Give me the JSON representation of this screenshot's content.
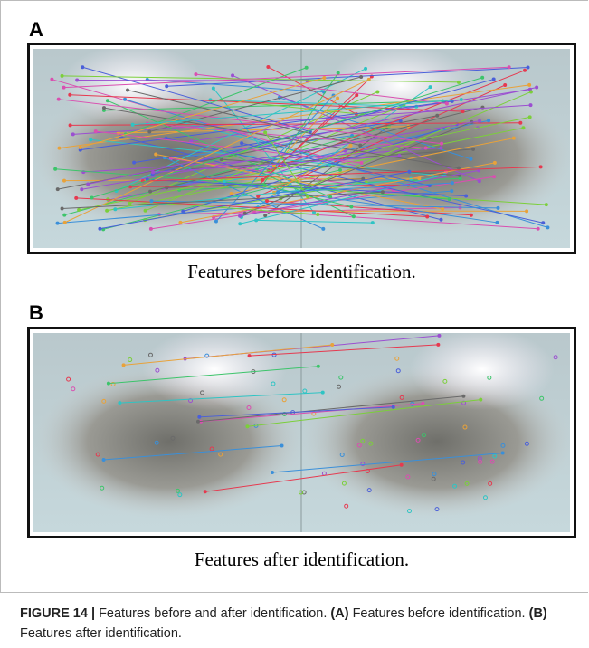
{
  "panels": [
    {
      "label": "A",
      "caption": "Features before identification."
    },
    {
      "label": "B",
      "caption": "Features after identification."
    }
  ],
  "caption": {
    "label": "FIGURE 14",
    "separator": "|",
    "title": "Features before and after identification.",
    "parts": [
      {
        "label": "(A)",
        "text": "Features before identification."
      },
      {
        "label": "(B)",
        "text": "Features after identification."
      }
    ]
  }
}
